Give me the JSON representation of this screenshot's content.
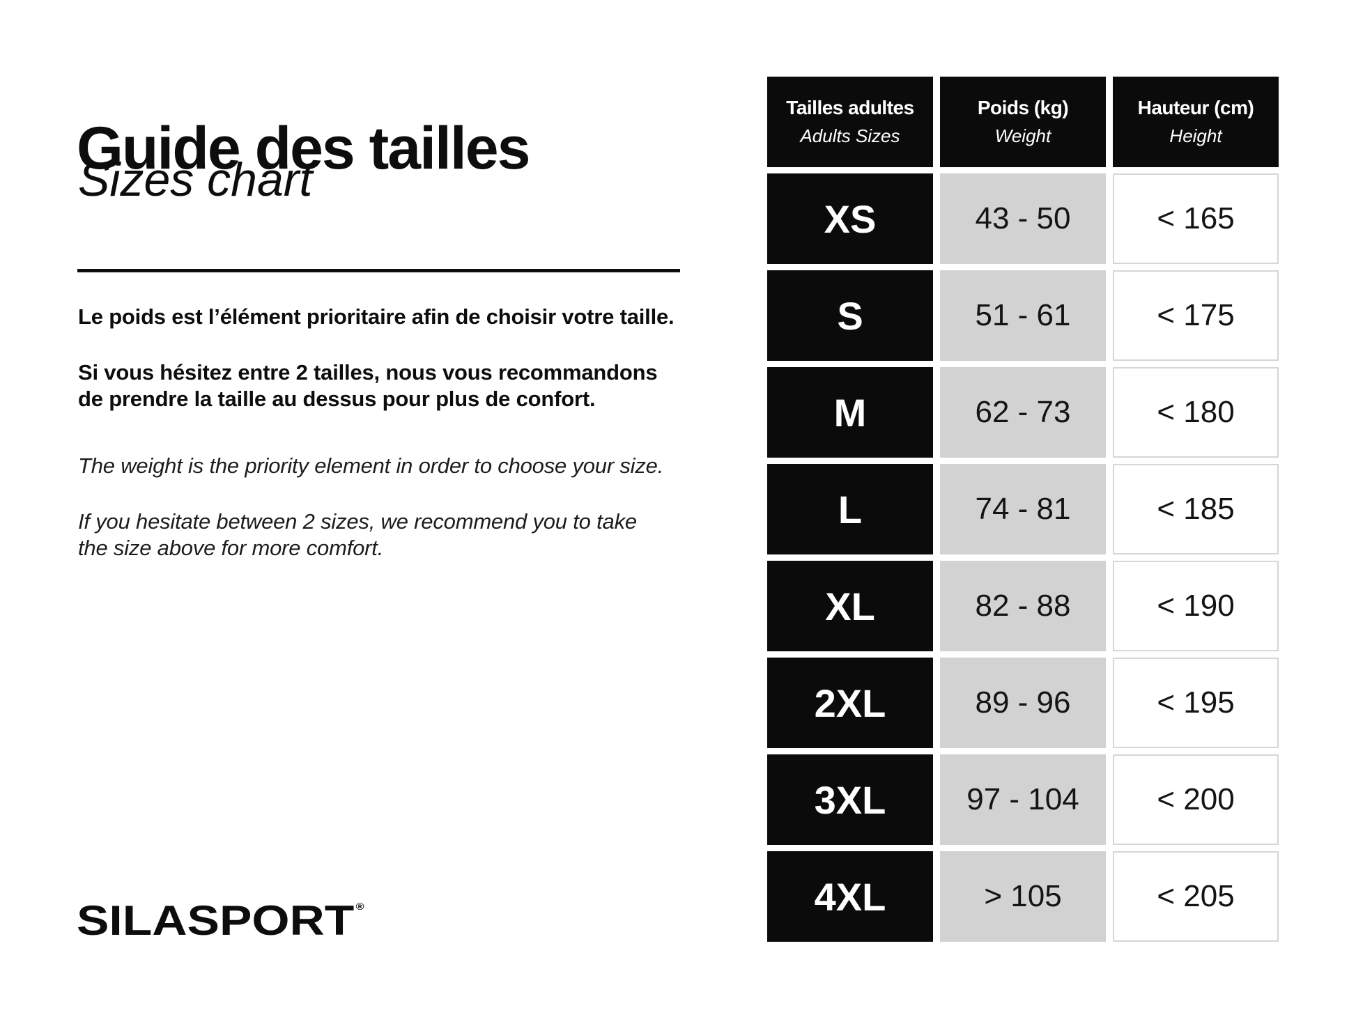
{
  "header": {
    "title_fr": "Guide des tailles",
    "title_en": "Sizes chart"
  },
  "notes": {
    "fr_weight": "Le poids est l’élément prioritaire afin de choisir votre taille.",
    "fr_hesitate": "Si vous hésitez entre 2 tailles, nous vous recommandons\nde prendre la taille au dessus pour plus de confort.",
    "en_weight": "The weight is the priority element in order to choose your size.",
    "en_hesitate": "If you hesitate between 2 sizes, we recommend you to take\nthe size above for more comfort.",
    "divider": true
  },
  "brand": {
    "name": "SILASPORT",
    "mark": "®"
  },
  "table": {
    "headers": [
      {
        "fr": "Tailles adultes",
        "en": "Adults Sizes"
      },
      {
        "fr": "Poids (kg)",
        "en": "Weight"
      },
      {
        "fr": "Hauteur (cm)",
        "en": "Height"
      }
    ],
    "rows": [
      {
        "size": "XS",
        "weight": "43 - 50",
        "height": "< 165"
      },
      {
        "size": "S",
        "weight": "51 - 61",
        "height": "< 175"
      },
      {
        "size": "M",
        "weight": "62 - 73",
        "height": "< 180"
      },
      {
        "size": "L",
        "weight": "74 - 81",
        "height": "< 185"
      },
      {
        "size": "XL",
        "weight": "82 - 88",
        "height": "< 190"
      },
      {
        "size": "2XL",
        "weight": "89 - 96",
        "height": "< 195"
      },
      {
        "size": "3XL",
        "weight": "97 - 104",
        "height": "< 200"
      },
      {
        "size": "4XL",
        "weight": "> 105",
        "height": "< 205"
      }
    ]
  },
  "colors": {
    "ink": "#0d0d0d",
    "cell_black": "#0b0b0b",
    "cell_gray": "#d2d2d2",
    "cell_border": "#d6d6d6",
    "background": "#ffffff"
  }
}
